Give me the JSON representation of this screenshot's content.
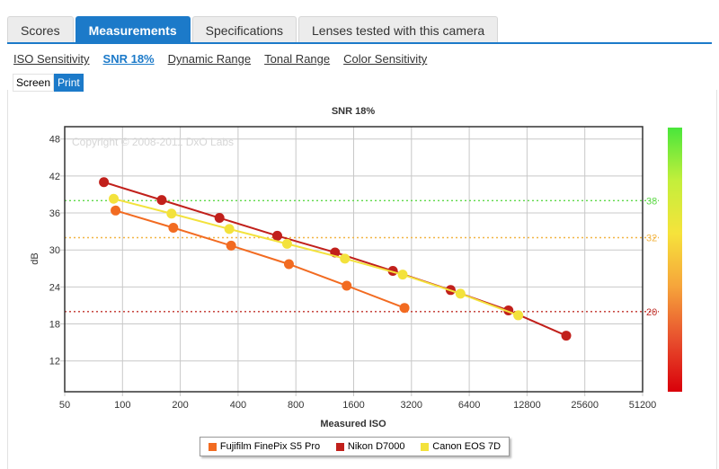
{
  "tabs": [
    {
      "label": "Scores"
    },
    {
      "label": "Measurements"
    },
    {
      "label": "Specifications"
    },
    {
      "label": "Lenses tested with this camera"
    }
  ],
  "active_tab": 1,
  "subnav": [
    {
      "label": "ISO Sensitivity"
    },
    {
      "label": "SNR 18%"
    },
    {
      "label": "Dynamic Range"
    },
    {
      "label": "Tonal Range"
    },
    {
      "label": "Color Sensitivity"
    }
  ],
  "active_subnav": 1,
  "view_toggle": {
    "screen": "Screen",
    "print": "Print"
  },
  "colors": {
    "accent": "#1c7ac9"
  },
  "chart_data": {
    "type": "line",
    "title": "SNR 18%",
    "xlabel": "Measured ISO",
    "ylabel": "dB",
    "watermark": "Copyright © 2008-2011 DxO Labs",
    "x_scale": "log2",
    "xlim": [
      50,
      51200
    ],
    "ylim": [
      7,
      50
    ],
    "x_ticks": [
      50,
      100,
      200,
      400,
      800,
      1600,
      3200,
      6400,
      12800,
      25600,
      51200
    ],
    "x_tick_labels": [
      "50",
      "100",
      "200",
      "400",
      "800",
      "1600",
      "3200",
      "6400",
      "12800",
      "25600",
      "51200"
    ],
    "y_ticks": [
      12,
      18,
      24,
      30,
      36,
      42,
      48
    ],
    "y_tick_labels": [
      "12",
      "18",
      "24",
      "30",
      "36",
      "42",
      "48"
    ],
    "reference_lines": [
      {
        "value": 38,
        "label": "38",
        "color": "#5fd94a"
      },
      {
        "value": 32,
        "label": "32",
        "color": "#f2b544"
      },
      {
        "value": 20,
        "label": "20",
        "color": "#c0302a"
      }
    ],
    "color_scale": [
      "#49e63b",
      "#c3ef3b",
      "#f6e33b",
      "#f6a53b",
      "#e8502e",
      "#d9000a"
    ],
    "series": [
      {
        "name": "Fujifilm FinePix S5 Pro",
        "color": "#f26b21",
        "x": [
          92,
          184,
          368,
          736,
          1472,
          2944
        ],
        "y": [
          36.4,
          33.6,
          30.7,
          27.7,
          24.2,
          20.6
        ]
      },
      {
        "name": "Nikon D7000",
        "color": "#c1201b",
        "x": [
          80,
          160,
          320,
          640,
          1280,
          2560,
          5120,
          10240,
          20480
        ],
        "y": [
          41.0,
          38.1,
          35.2,
          32.3,
          29.6,
          26.6,
          23.5,
          20.2,
          16.1
        ]
      },
      {
        "name": "Canon EOS 7D",
        "color": "#f3e23c",
        "x": [
          90,
          180,
          360,
          720,
          1440,
          2880,
          5760,
          11520
        ],
        "y": [
          38.3,
          35.9,
          33.4,
          31.0,
          28.6,
          26.0,
          22.9,
          19.4
        ]
      }
    ]
  }
}
